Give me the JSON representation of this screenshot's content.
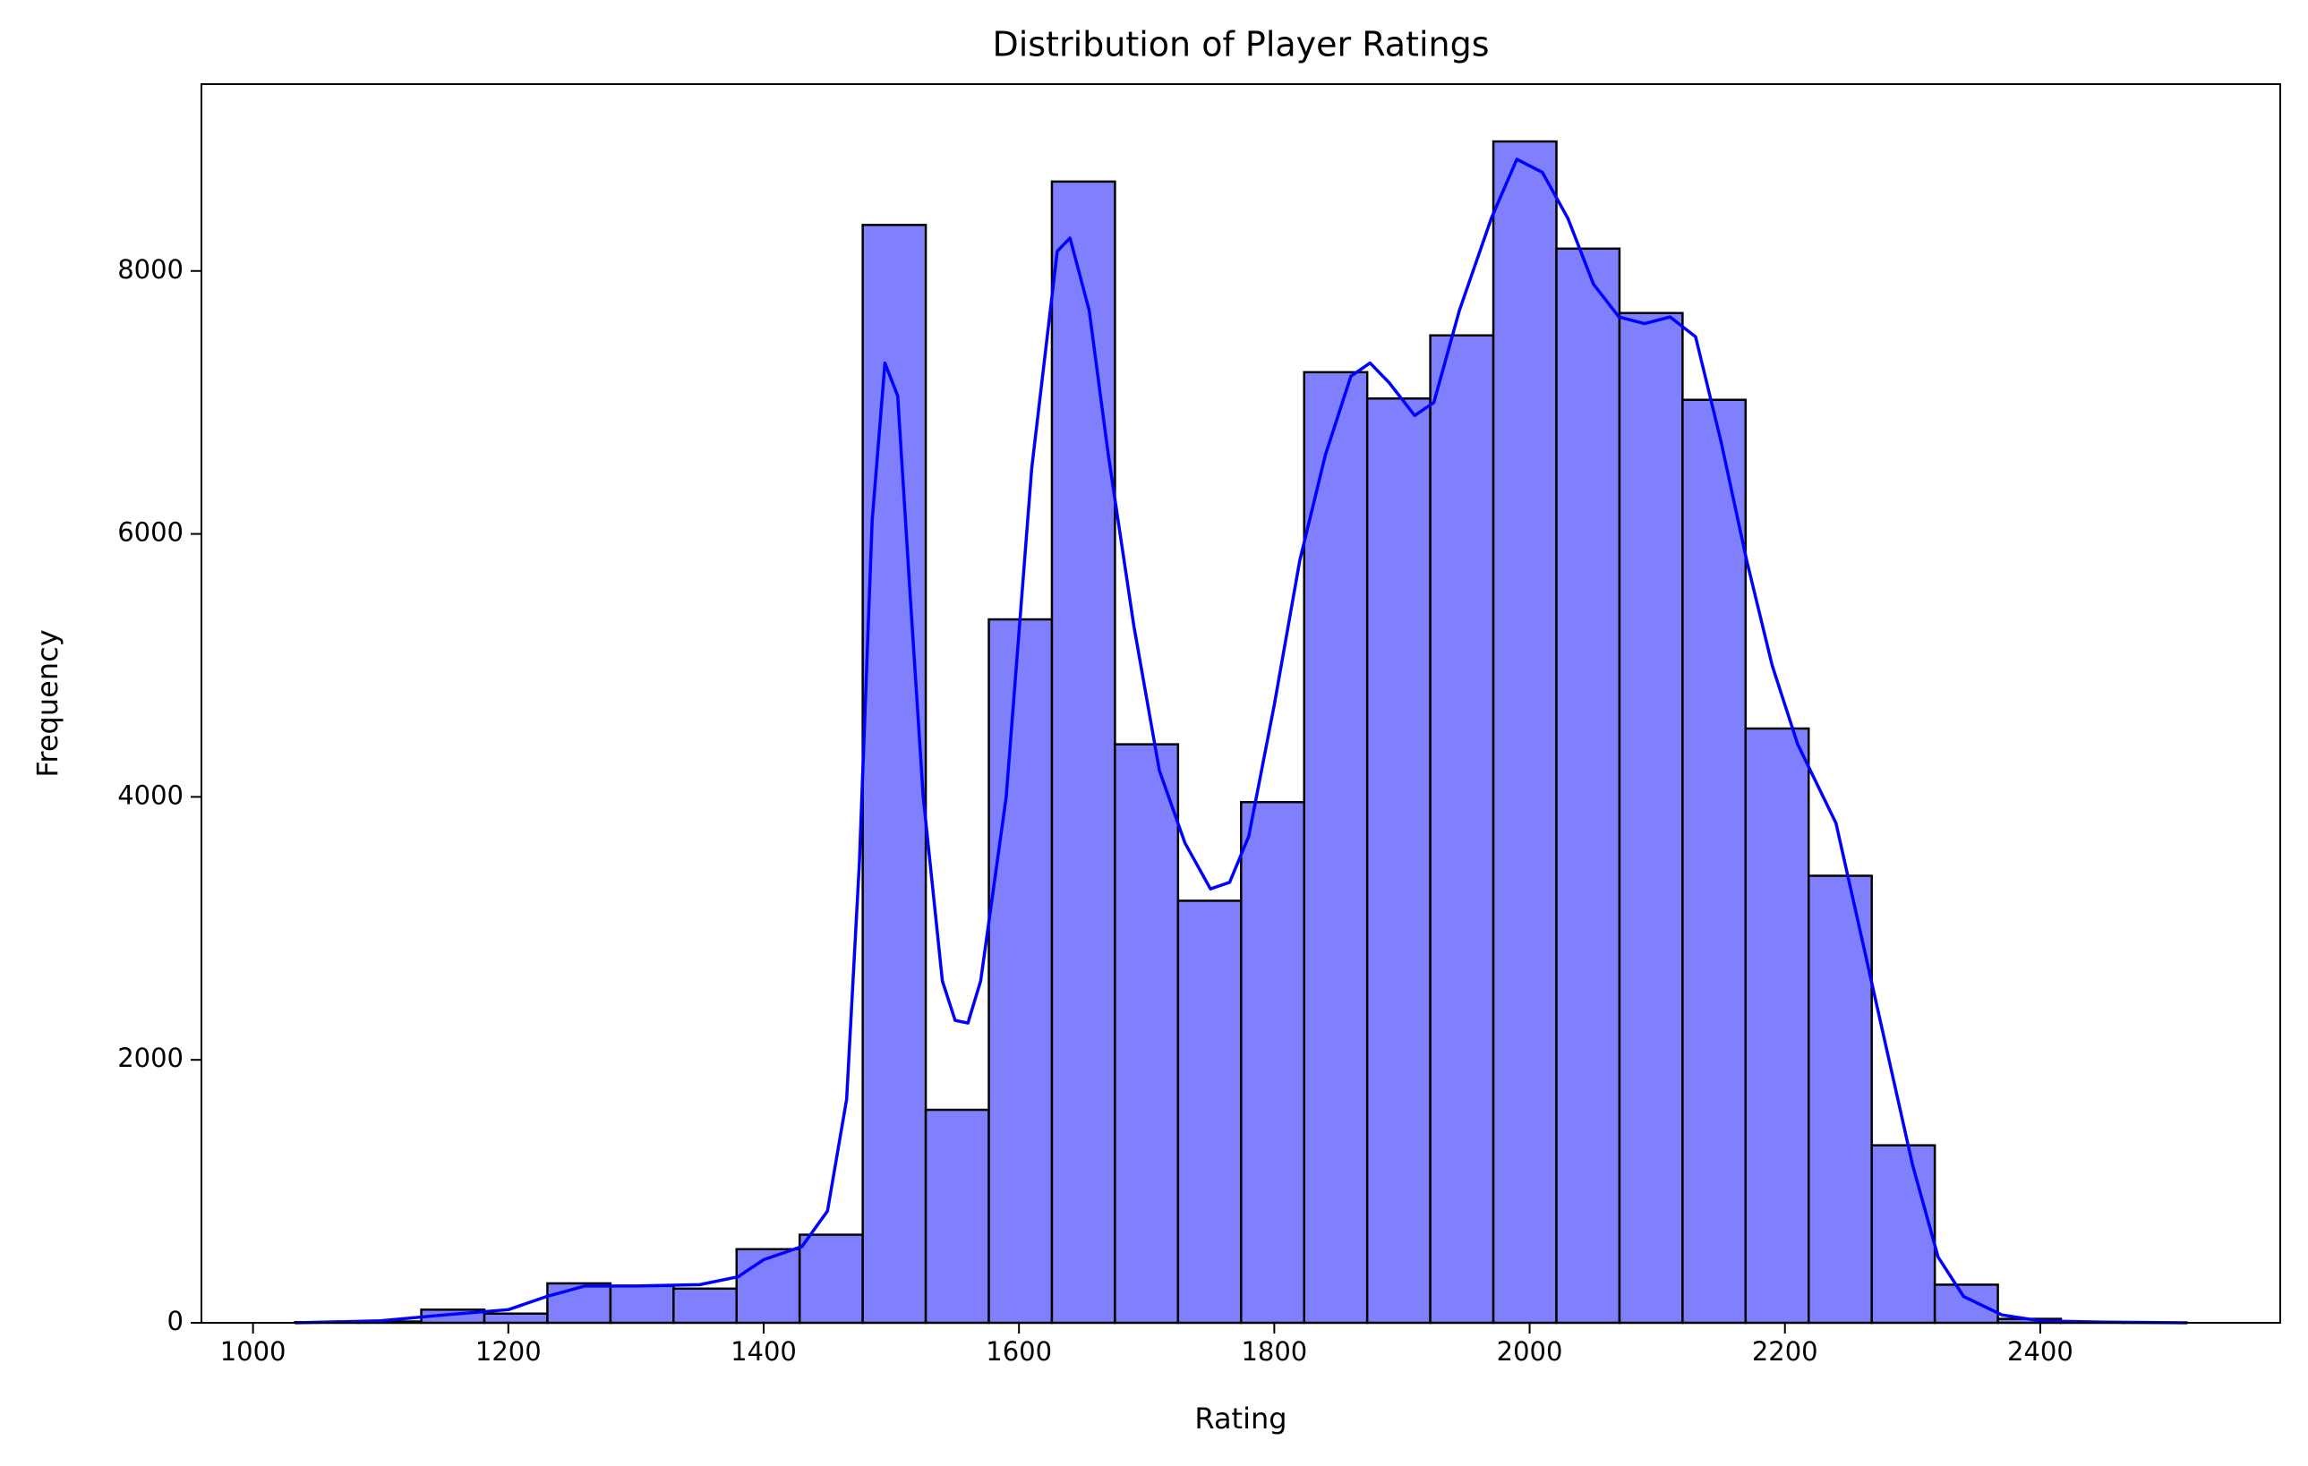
{
  "chart_data": {
    "type": "histogram",
    "title": "Distribution of Player Ratings",
    "x_label": "Rating",
    "y_label": "Frequency",
    "bins": [
      1033.0,
      1082.4,
      1131.8,
      1181.2,
      1230.6,
      1280.0,
      1329.4,
      1378.8,
      1428.2,
      1477.6,
      1527.0,
      1576.4,
      1625.8,
      1675.2,
      1724.6,
      1774.0,
      1823.4,
      1872.8,
      1922.2,
      1971.6,
      2021.0,
      2070.4,
      2119.8,
      2169.2,
      2218.6,
      2268.0,
      2317.4,
      2366.8,
      2416.2,
      2465.6,
      2515.0
    ],
    "values": [
      5,
      10,
      100,
      70,
      300,
      280,
      260,
      560,
      670,
      8350,
      1620,
      5350,
      8680,
      4400,
      3210,
      3960,
      7230,
      7030,
      7510,
      8985,
      8170,
      7680,
      7020,
      4520,
      3400,
      1350,
      290,
      30,
      3,
      1
    ],
    "color": "#8080ff",
    "edgecolor": "#000000",
    "kde": {
      "color": "#0000ff",
      "x": [
        1033,
        1100,
        1150,
        1200,
        1230,
        1260,
        1300,
        1350,
        1380,
        1400,
        1430,
        1450,
        1465,
        1475,
        1485,
        1495,
        1505,
        1515,
        1525,
        1540,
        1550,
        1560,
        1570,
        1590,
        1610,
        1630,
        1640,
        1655,
        1670,
        1690,
        1710,
        1730,
        1750,
        1765,
        1780,
        1800,
        1820,
        1840,
        1860,
        1875,
        1890,
        1910,
        1925,
        1945,
        1970,
        1990,
        2010,
        2030,
        2050,
        2070,
        2090,
        2110,
        2130,
        2150,
        2170,
        2190,
        2210,
        2240,
        2270,
        2300,
        2320,
        2340,
        2370,
        2400,
        2450,
        2515
      ],
      "values": [
        0,
        15,
        60,
        100,
        200,
        280,
        280,
        290,
        350,
        480,
        580,
        850,
        1700,
        3500,
        6100,
        7300,
        7050,
        5500,
        4000,
        2600,
        2300,
        2280,
        2600,
        4000,
        6500,
        8150,
        8250,
        7700,
        6600,
        5300,
        4200,
        3650,
        3300,
        3350,
        3700,
        4700,
        5800,
        6600,
        7200,
        7300,
        7150,
        6900,
        7000,
        7700,
        8400,
        8850,
        8750,
        8400,
        7900,
        7650,
        7600,
        7650,
        7500,
        6700,
        5800,
        5000,
        4400,
        3800,
        2500,
        1200,
        500,
        200,
        60,
        15,
        5,
        0
      ]
    },
    "xlim": [
      959.6,
      2588
    ],
    "ylim": [
      0,
      9421
    ],
    "xticks": [
      1000,
      1200,
      1400,
      1600,
      1800,
      2000,
      2200,
      2400
    ],
    "yticks": [
      0,
      2000,
      4000,
      6000,
      8000
    ]
  }
}
